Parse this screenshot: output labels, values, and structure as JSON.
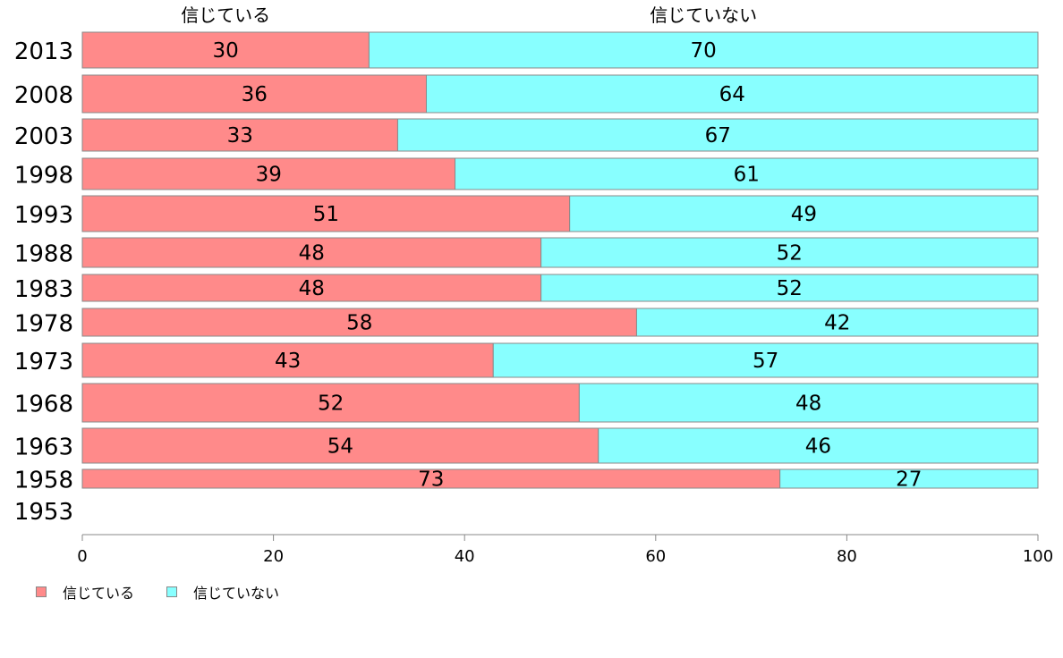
{
  "chart_data": {
    "type": "bar",
    "orientation": "horizontal",
    "stacked": true,
    "categories": [
      "2013",
      "2008",
      "2003",
      "1998",
      "1993",
      "1988",
      "1983",
      "1978",
      "1973",
      "1968",
      "1963",
      "1958",
      "1953"
    ],
    "series": [
      {
        "name": "信じている",
        "color": "#ff8a8a",
        "values": [
          30,
          36,
          33,
          39,
          51,
          48,
          48,
          58,
          43,
          52,
          54,
          73,
          null
        ]
      },
      {
        "name": "信じていない",
        "color": "#88ffff",
        "values": [
          70,
          64,
          67,
          61,
          49,
          52,
          52,
          42,
          57,
          48,
          46,
          27,
          null
        ]
      }
    ],
    "column_headers": [
      "信じている",
      "信じていない"
    ],
    "xlim": [
      0,
      100
    ],
    "xticks": [
      "0",
      "20",
      "40",
      "60",
      "80",
      "100"
    ],
    "grid": false,
    "legend_position": "bottom-left"
  },
  "legend": {
    "items": [
      {
        "label": "信じている",
        "color": "#ff8a8a"
      },
      {
        "label": "信じていない",
        "color": "#88ffff"
      }
    ]
  }
}
